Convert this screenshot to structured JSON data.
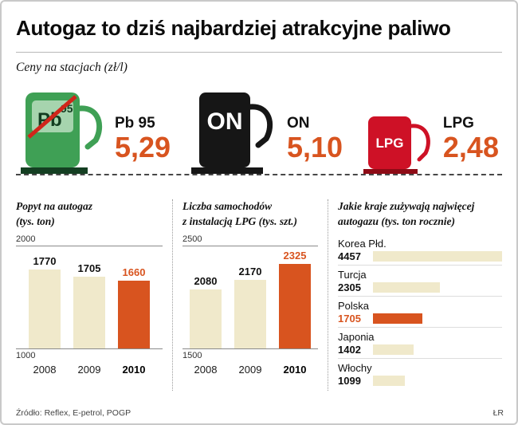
{
  "title": "Autogaz to dziś najbardziej atrakcyjne paliwo",
  "prices": {
    "subtitle": "Ceny na stacjach (zł/l)",
    "items": [
      {
        "name": "Pb 95",
        "value": "5,29",
        "badge_main": "Pb",
        "badge_sup": "95"
      },
      {
        "name": "ON",
        "value": "5,10",
        "badge_main": "ON"
      },
      {
        "name": "LPG",
        "value": "2,48",
        "badge_main": "LPG"
      }
    ]
  },
  "colors": {
    "accent_orange": "#d8541f",
    "bar_beige": "#f0e9cb",
    "pump_green": "#3fa055",
    "pump_black": "#161616",
    "pump_red": "#ce1126"
  },
  "chart_data": [
    {
      "type": "bar",
      "title": "Popyt na autogaz (tys. ton)",
      "title_lines": [
        "Popyt na autogaz",
        "(tys. ton)"
      ],
      "categories": [
        "2008",
        "2009",
        "2010"
      ],
      "values": [
        1770,
        1705,
        1660
      ],
      "ylim": [
        1000,
        2000
      ],
      "highlight_index": 2,
      "xlabel": "",
      "ylabel": "tys. ton"
    },
    {
      "type": "bar",
      "title": "Liczba samochodów z instalacją LPG (tys. szt.)",
      "title_lines": [
        "Liczba samochodów",
        "z instalacją LPG (tys. szt.)"
      ],
      "categories": [
        "2008",
        "2009",
        "2010"
      ],
      "values": [
        2080,
        2170,
        2325
      ],
      "ylim": [
        1500,
        2500
      ],
      "highlight_index": 2,
      "xlabel": "",
      "ylabel": "tys. szt."
    },
    {
      "type": "bar",
      "orientation": "horizontal",
      "title": "Jakie kraje zużywają najwięcej autogazu (tys. ton rocznie)",
      "title_lines": [
        "Jakie kraje zużywają najwięcej",
        "autogazu (tys. ton rocznie)"
      ],
      "categories": [
        "Korea Płd.",
        "Turcja",
        "Polska",
        "Japonia",
        "Włochy"
      ],
      "values": [
        4457,
        2305,
        1705,
        1402,
        1099
      ],
      "highlight_index": 2,
      "ylabel": "tys. ton rocznie"
    }
  ],
  "footer": {
    "source": "Źródło: Reflex, E-petrol, POGP",
    "credit": "ŁR"
  }
}
